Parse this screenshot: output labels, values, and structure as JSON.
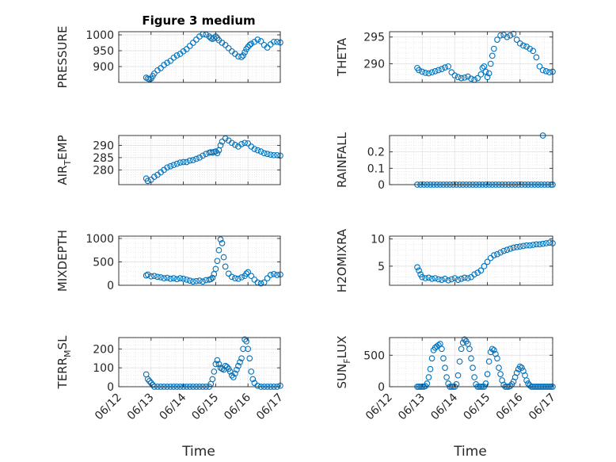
{
  "figure": {
    "title": "Figure 3 medium",
    "xlabels": [
      "Time",
      "Time"
    ],
    "colors": {
      "marker": "#0072BD",
      "axis": "#262626",
      "grid": "#dcdcdc"
    }
  },
  "chart_data": [
    {
      "type": "scatter",
      "title": "Figure 3 medium",
      "ylabel": "PRESSURE",
      "xlim": [
        "06/12",
        "06/17"
      ],
      "ylim": [
        850,
        1010
      ],
      "yticks": [
        900,
        950,
        1000
      ],
      "xticks": [
        "06/12",
        "06/13",
        "06/14",
        "06/15",
        "06/16",
        "06/17"
      ],
      "show_xticks": false,
      "grid": true,
      "marker": "circle-open",
      "series": [
        {
          "x": [
            0.85,
            0.9,
            0.95,
            1.0,
            1.05,
            1.1,
            1.2,
            1.3,
            1.4,
            1.5,
            1.6,
            1.7,
            1.8,
            1.9,
            2.0,
            2.1,
            2.2,
            2.3,
            2.4,
            2.5,
            2.6,
            2.7,
            2.8,
            2.85,
            2.9,
            2.95,
            3.0,
            3.05,
            3.1,
            3.2,
            3.3,
            3.4,
            3.5,
            3.6,
            3.7,
            3.8,
            3.85,
            3.9,
            3.95,
            4.0,
            4.05,
            4.1,
            4.2,
            4.3,
            4.4,
            4.5,
            4.6,
            4.7,
            4.8,
            4.9,
            5.0
          ],
          "y": [
            865,
            862,
            860,
            862,
            870,
            878,
            888,
            895,
            905,
            912,
            918,
            928,
            935,
            940,
            948,
            955,
            965,
            975,
            985,
            995,
            1002,
            1001,
            995,
            990,
            987,
            990,
            995,
            990,
            983,
            975,
            968,
            958,
            948,
            940,
            932,
            930,
            935,
            945,
            955,
            962,
            968,
            972,
            978,
            985,
            980,
            968,
            960,
            970,
            978,
            978,
            976
          ]
        }
      ]
    },
    {
      "type": "scatter",
      "title": "",
      "ylabel": "THETA",
      "xlim": [
        "06/12",
        "06/17"
      ],
      "ylim": [
        286.5,
        296
      ],
      "yticks": [
        290,
        295
      ],
      "xticks": [
        "06/12",
        "06/13",
        "06/14",
        "06/15",
        "06/16",
        "06/17"
      ],
      "show_xticks": false,
      "grid": true,
      "marker": "circle-open",
      "series": [
        {
          "x": [
            0.85,
            0.9,
            1.0,
            1.1,
            1.2,
            1.3,
            1.4,
            1.5,
            1.6,
            1.7,
            1.8,
            1.9,
            2.0,
            2.1,
            2.2,
            2.3,
            2.4,
            2.5,
            2.6,
            2.7,
            2.8,
            2.85,
            2.9,
            2.95,
            3.0,
            3.05,
            3.1,
            3.15,
            3.2,
            3.3,
            3.4,
            3.5,
            3.6,
            3.7,
            3.8,
            3.9,
            4.0,
            4.1,
            4.2,
            4.3,
            4.4,
            4.5,
            4.6,
            4.7,
            4.8,
            4.9,
            5.0
          ],
          "y": [
            289.2,
            288.8,
            288.5,
            288.3,
            288.2,
            288.4,
            288.6,
            288.8,
            289.0,
            289.3,
            289.5,
            288.4,
            287.8,
            287.5,
            287.3,
            287.4,
            287.6,
            287.2,
            287.0,
            287.3,
            288.0,
            289.2,
            289.5,
            288.5,
            287.5,
            288.2,
            290.0,
            291.5,
            292.8,
            294.5,
            295.3,
            295.4,
            295.0,
            295.3,
            295.6,
            294.5,
            293.8,
            293.4,
            293.2,
            292.8,
            292.4,
            291.2,
            289.5,
            288.8,
            288.6,
            288.4,
            288.5
          ]
        }
      ]
    },
    {
      "type": "scatter",
      "title": "",
      "ylabel": "AIR_TEMP",
      "xlim": [
        "06/12",
        "06/17"
      ],
      "ylim": [
        274,
        294
      ],
      "yticks": [
        280,
        285,
        290
      ],
      "xticks": [
        "06/12",
        "06/13",
        "06/14",
        "06/15",
        "06/16",
        "06/17"
      ],
      "show_xticks": false,
      "grid": true,
      "marker": "circle-open",
      "series": [
        {
          "x": [
            0.85,
            0.9,
            1.0,
            1.1,
            1.2,
            1.3,
            1.4,
            1.5,
            1.6,
            1.7,
            1.8,
            1.9,
            2.0,
            2.1,
            2.2,
            2.3,
            2.4,
            2.5,
            2.6,
            2.7,
            2.8,
            2.85,
            2.9,
            2.95,
            3.0,
            3.05,
            3.1,
            3.15,
            3.2,
            3.3,
            3.4,
            3.5,
            3.6,
            3.7,
            3.8,
            3.9,
            4.0,
            4.1,
            4.2,
            4.3,
            4.4,
            4.5,
            4.6,
            4.7,
            4.8,
            4.9,
            5.0
          ],
          "y": [
            276.5,
            275.5,
            276.0,
            277.2,
            278.0,
            279.0,
            280.0,
            281.0,
            281.5,
            282.0,
            282.5,
            283.0,
            283.2,
            283.2,
            283.8,
            284.0,
            284.5,
            285.0,
            285.8,
            286.5,
            287.0,
            287.2,
            287.0,
            287.3,
            287.5,
            286.8,
            288.0,
            290.0,
            291.5,
            292.8,
            292.0,
            291.0,
            290.2,
            289.5,
            290.5,
            291.0,
            290.8,
            289.5,
            288.5,
            288.0,
            287.5,
            286.8,
            286.5,
            286.2,
            286.0,
            286.0,
            285.8
          ]
        }
      ]
    },
    {
      "type": "scatter",
      "title": "",
      "ylabel": "RAINFALL",
      "xlim": [
        "06/12",
        "06/17"
      ],
      "ylim": [
        0,
        0.3
      ],
      "yticks": [
        0,
        0.1,
        0.2
      ],
      "xticks": [
        "06/12",
        "06/13",
        "06/14",
        "06/15",
        "06/16",
        "06/17"
      ],
      "show_xticks": false,
      "grid": true,
      "marker": "circle-open",
      "series": [
        {
          "x": [
            0.85,
            0.95,
            1.05,
            1.15,
            1.25,
            1.35,
            1.45,
            1.55,
            1.65,
            1.75,
            1.85,
            1.95,
            2.05,
            2.15,
            2.25,
            2.35,
            2.45,
            2.55,
            2.65,
            2.75,
            2.85,
            2.95,
            3.05,
            3.15,
            3.25,
            3.35,
            3.45,
            3.55,
            3.65,
            3.75,
            3.85,
            3.95,
            4.05,
            4.15,
            4.25,
            4.35,
            4.45,
            4.55,
            4.65,
            4.7,
            4.75,
            4.85,
            4.95,
            5.0
          ],
          "y": [
            0,
            0,
            0,
            0,
            0,
            0,
            0,
            0,
            0,
            0,
            0,
            0,
            0,
            0,
            0,
            0,
            0,
            0,
            0,
            0,
            0,
            0,
            0,
            0,
            0,
            0,
            0,
            0,
            0,
            0,
            0,
            0,
            0,
            0,
            0,
            0,
            0,
            0,
            0,
            0.3,
            0,
            0,
            0,
            0
          ]
        }
      ]
    },
    {
      "type": "scatter",
      "title": "",
      "ylabel": "MIXDEPTH",
      "xlim": [
        "06/12",
        "06/17"
      ],
      "ylim": [
        0,
        1050
      ],
      "yticks": [
        0,
        500,
        1000
      ],
      "xticks": [
        "06/12",
        "06/13",
        "06/14",
        "06/15",
        "06/16",
        "06/17"
      ],
      "show_xticks": false,
      "grid": true,
      "marker": "circle-open",
      "series": [
        {
          "x": [
            0.85,
            0.9,
            1.0,
            1.1,
            1.2,
            1.3,
            1.4,
            1.5,
            1.6,
            1.7,
            1.8,
            1.9,
            2.0,
            2.1,
            2.2,
            2.3,
            2.4,
            2.5,
            2.6,
            2.7,
            2.8,
            2.85,
            2.9,
            2.95,
            3.0,
            3.05,
            3.1,
            3.15,
            3.2,
            3.25,
            3.3,
            3.4,
            3.5,
            3.6,
            3.7,
            3.8,
            3.9,
            3.95,
            4.0,
            4.1,
            4.2,
            4.3,
            4.4,
            4.5,
            4.6,
            4.7,
            4.8,
            4.9,
            5.0
          ],
          "y": [
            210,
            230,
            190,
            200,
            180,
            170,
            150,
            160,
            140,
            150,
            130,
            150,
            140,
            120,
            100,
            80,
            90,
            100,
            80,
            110,
            120,
            130,
            160,
            240,
            350,
            520,
            750,
            980,
            900,
            600,
            400,
            250,
            180,
            150,
            140,
            170,
            200,
            250,
            280,
            200,
            120,
            60,
            40,
            60,
            150,
            220,
            240,
            220,
            230
          ]
        }
      ]
    },
    {
      "type": "scatter",
      "title": "",
      "ylabel": "H2OMIXRA",
      "xlim": [
        "06/12",
        "06/17"
      ],
      "ylim": [
        1.5,
        10.5
      ],
      "yticks": [
        5,
        10
      ],
      "xticks": [
        "06/12",
        "06/13",
        "06/14",
        "06/15",
        "06/16",
        "06/17"
      ],
      "show_xticks": false,
      "grid": true,
      "marker": "circle-open",
      "series": [
        {
          "x": [
            0.85,
            0.9,
            0.95,
            1.0,
            1.1,
            1.2,
            1.3,
            1.4,
            1.5,
            1.6,
            1.7,
            1.8,
            1.9,
            2.0,
            2.1,
            2.2,
            2.3,
            2.4,
            2.5,
            2.6,
            2.7,
            2.8,
            2.9,
            3.0,
            3.1,
            3.2,
            3.3,
            3.4,
            3.5,
            3.6,
            3.7,
            3.8,
            3.9,
            4.0,
            4.1,
            4.2,
            4.3,
            4.4,
            4.5,
            4.6,
            4.7,
            4.8,
            4.9,
            5.0
          ],
          "y": [
            4.8,
            4.2,
            3.5,
            3.0,
            2.8,
            2.9,
            2.7,
            2.8,
            2.6,
            2.5,
            2.7,
            2.4,
            2.6,
            2.8,
            2.5,
            2.7,
            2.9,
            2.8,
            3.0,
            3.5,
            3.8,
            4.2,
            5.0,
            5.8,
            6.5,
            7.0,
            7.2,
            7.5,
            7.8,
            8.0,
            8.2,
            8.4,
            8.5,
            8.6,
            8.7,
            8.8,
            8.8,
            8.9,
            9.0,
            9.0,
            9.1,
            9.2,
            9.3,
            9.2
          ]
        }
      ]
    },
    {
      "type": "scatter",
      "title": "",
      "ylabel": "TERR_MSL",
      "xlim": [
        "06/12",
        "06/17"
      ],
      "ylim": [
        0,
        260
      ],
      "yticks": [
        0,
        100,
        200
      ],
      "xticks": [
        "06/12",
        "06/13",
        "06/14",
        "06/15",
        "06/16",
        "06/17"
      ],
      "show_xticks": true,
      "grid": true,
      "marker": "circle-open",
      "series": [
        {
          "x": [
            0.85,
            0.9,
            0.95,
            1.0,
            1.05,
            1.1,
            1.2,
            1.3,
            1.4,
            1.5,
            1.6,
            1.7,
            1.8,
            1.9,
            2.0,
            2.1,
            2.2,
            2.3,
            2.4,
            2.5,
            2.6,
            2.7,
            2.8,
            2.85,
            2.9,
            2.95,
            3.0,
            3.05,
            3.1,
            3.15,
            3.2,
            3.25,
            3.3,
            3.35,
            3.4,
            3.45,
            3.5,
            3.55,
            3.6,
            3.65,
            3.7,
            3.75,
            3.8,
            3.85,
            3.9,
            3.95,
            4.0,
            4.05,
            4.1,
            4.15,
            4.2,
            4.3,
            4.4,
            4.5,
            4.6,
            4.7,
            4.8,
            4.9,
            5.0
          ],
          "y": [
            65,
            40,
            30,
            20,
            10,
            0,
            0,
            0,
            0,
            0,
            0,
            0,
            0,
            0,
            0,
            0,
            0,
            0,
            0,
            0,
            0,
            0,
            0,
            15,
            40,
            80,
            120,
            140,
            120,
            100,
            95,
            90,
            110,
            105,
            95,
            80,
            60,
            50,
            70,
            90,
            110,
            130,
            150,
            200,
            250,
            240,
            200,
            150,
            80,
            40,
            20,
            5,
            0,
            0,
            0,
            0,
            0,
            0,
            5
          ]
        }
      ]
    },
    {
      "type": "scatter",
      "title": "",
      "ylabel": "SUN_FLUX",
      "xlim": [
        "06/12",
        "06/17"
      ],
      "ylim": [
        0,
        780
      ],
      "yticks": [
        0,
        500
      ],
      "xticks": [
        "06/12",
        "06/13",
        "06/14",
        "06/15",
        "06/16",
        "06/17"
      ],
      "show_xticks": true,
      "grid": true,
      "marker": "circle-open",
      "series": [
        {
          "x": [
            0.85,
            0.9,
            0.95,
            1.0,
            1.05,
            1.1,
            1.15,
            1.2,
            1.25,
            1.3,
            1.35,
            1.4,
            1.45,
            1.5,
            1.55,
            1.6,
            1.65,
            1.7,
            1.75,
            1.8,
            1.85,
            1.9,
            1.95,
            2.0,
            2.05,
            2.1,
            2.15,
            2.2,
            2.25,
            2.3,
            2.35,
            2.4,
            2.45,
            2.5,
            2.55,
            2.6,
            2.65,
            2.7,
            2.75,
            2.8,
            2.85,
            2.9,
            2.95,
            3.0,
            3.05,
            3.1,
            3.15,
            3.2,
            3.25,
            3.3,
            3.35,
            3.4,
            3.45,
            3.5,
            3.55,
            3.6,
            3.65,
            3.7,
            3.75,
            3.8,
            3.85,
            3.9,
            3.95,
            4.0,
            4.05,
            4.1,
            4.15,
            4.2,
            4.25,
            4.3,
            4.35,
            4.4,
            4.45,
            4.5,
            4.55,
            4.6,
            4.65,
            4.7,
            4.75,
            4.8,
            4.85,
            4.9,
            4.95,
            5.0
          ],
          "y": [
            0,
            0,
            0,
            0,
            0,
            10,
            50,
            150,
            280,
            450,
            580,
            620,
            640,
            660,
            680,
            600,
            450,
            300,
            150,
            50,
            0,
            0,
            0,
            0,
            40,
            180,
            400,
            600,
            700,
            750,
            720,
            680,
            600,
            450,
            300,
            150,
            40,
            0,
            0,
            0,
            0,
            0,
            50,
            200,
            400,
            550,
            600,
            580,
            520,
            450,
            300,
            200,
            100,
            30,
            0,
            0,
            0,
            10,
            40,
            80,
            150,
            220,
            280,
            320,
            300,
            250,
            180,
            100,
            50,
            20,
            0,
            0,
            0,
            0,
            0,
            0,
            0,
            0,
            0,
            0,
            0,
            0,
            0,
            0
          ]
        }
      ]
    }
  ]
}
